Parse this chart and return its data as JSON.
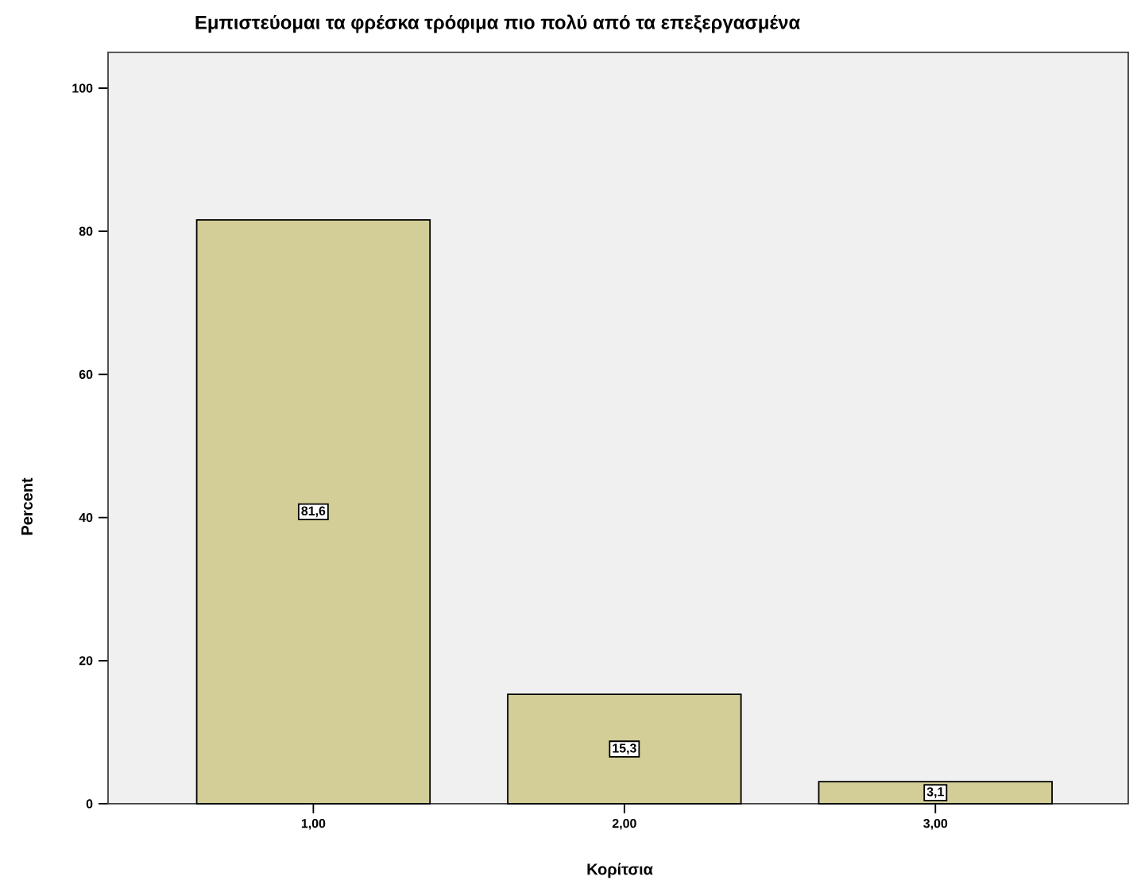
{
  "chart_data": {
    "type": "bar",
    "title": "Εμπιστεύομαι τα φρέσκα τρόφιμα πιο πολύ από τα επεξεργασμένα",
    "xlabel": "Κορίτσια",
    "ylabel": "Percent",
    "categories": [
      "1,00",
      "2,00",
      "3,00"
    ],
    "values": [
      81.6,
      15.3,
      3.1
    ],
    "value_labels": [
      "81,6",
      "15,3",
      "3,1"
    ],
    "color": "#d3ce97",
    "ylim": [
      0,
      105
    ],
    "yticks": [
      0,
      20,
      40,
      60,
      80,
      100
    ],
    "grid": false
  }
}
